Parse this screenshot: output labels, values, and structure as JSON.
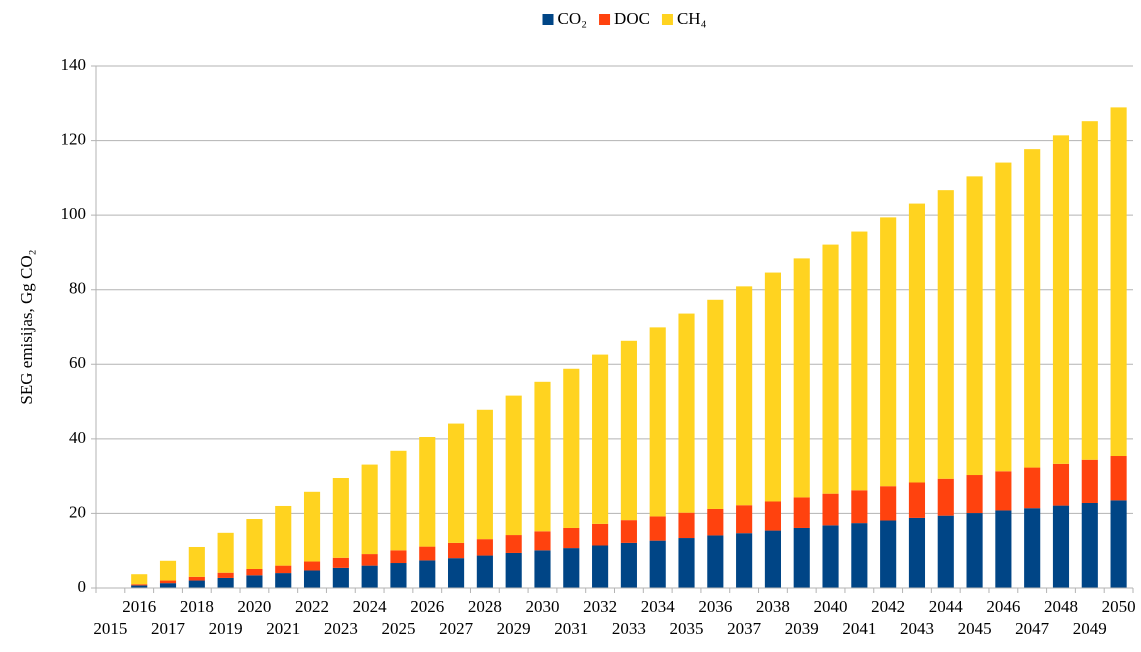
{
  "chart_data": {
    "type": "stacked-bar",
    "y_label": "SEG emisijas, Gg CO₂",
    "categories": [
      "2015",
      "2016",
      "2017",
      "2018",
      "2019",
      "2020",
      "2021",
      "2022",
      "2023",
      "2024",
      "2025",
      "2026",
      "2027",
      "2028",
      "2029",
      "2030",
      "2031",
      "2032",
      "2033",
      "2034",
      "2035",
      "2036",
      "2037",
      "2038",
      "2039",
      "2040",
      "2041",
      "2042",
      "2043",
      "2044",
      "2045",
      "2046",
      "2047",
      "2048",
      "2049",
      "2050"
    ],
    "series": [
      {
        "name": "CO₂",
        "color": "#004586",
        "values": [
          0,
          0.7,
          1.3,
          2.0,
          2.7,
          3.4,
          4.0,
          4.7,
          5.4,
          6.0,
          6.7,
          7.4,
          8.0,
          8.7,
          9.4,
          10.1,
          10.7,
          11.4,
          12.1,
          12.7,
          13.4,
          14.1,
          14.7,
          15.4,
          16.1,
          16.8,
          17.4,
          18.1,
          18.8,
          19.4,
          20.1,
          20.8,
          21.4,
          22.1,
          22.8,
          23.5
        ]
      },
      {
        "name": "DOC",
        "color": "#ff420e",
        "values": [
          0,
          0.3,
          0.7,
          1.0,
          1.4,
          1.7,
          2.0,
          2.4,
          2.7,
          3.1,
          3.4,
          3.7,
          4.1,
          4.4,
          4.8,
          5.1,
          5.4,
          5.8,
          6.1,
          6.5,
          6.8,
          7.1,
          7.5,
          7.8,
          8.2,
          8.5,
          8.8,
          9.2,
          9.5,
          9.9,
          10.2,
          10.5,
          10.9,
          11.2,
          11.6,
          11.9
        ]
      },
      {
        "name": "CH₄",
        "color": "#ffd320",
        "values": [
          0,
          2.7,
          5.3,
          8.0,
          10.7,
          13.4,
          16.0,
          18.7,
          21.4,
          24.0,
          26.7,
          29.4,
          32.0,
          34.7,
          37.4,
          40.1,
          42.7,
          45.4,
          48.1,
          50.7,
          53.4,
          56.1,
          58.7,
          61.4,
          64.1,
          66.8,
          69.4,
          72.1,
          74.8,
          77.4,
          80.1,
          82.8,
          85.4,
          88.1,
          90.8,
          93.5
        ]
      }
    ],
    "ylim": [
      0,
      140
    ],
    "yticks": [
      0,
      20,
      40,
      60,
      80,
      100,
      120,
      140
    ],
    "grid": true,
    "legend": "top"
  }
}
